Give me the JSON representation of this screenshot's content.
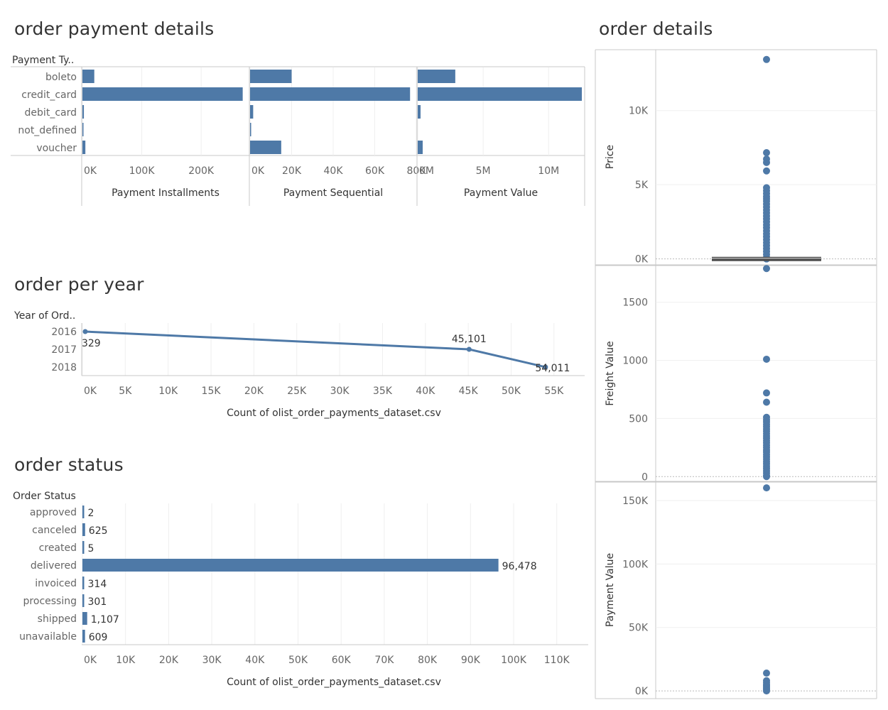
{
  "titles": {
    "payment": "order payment details",
    "year": "order per year",
    "status": "order status",
    "details": "order details"
  },
  "chart_data": [
    {
      "id": "payment",
      "type": "bar",
      "orientation": "horizontal",
      "row_header": "Payment Ty..",
      "categories": [
        "boleto",
        "credit_card",
        "debit_card",
        "not_defined",
        "voucher"
      ],
      "panels": [
        {
          "name": "Payment Installments",
          "values": [
            20000,
            270000,
            2500,
            3,
            5000
          ],
          "xlim": [
            0,
            280000
          ],
          "ticks": [
            0,
            100000,
            200000
          ],
          "tick_labels": [
            "0K",
            "100K",
            "200K"
          ]
        },
        {
          "name": "Payment Sequential",
          "values": [
            20000,
            77000,
            1500,
            3,
            15000
          ],
          "xlim": [
            0,
            80000
          ],
          "ticks": [
            0,
            20000,
            40000,
            60000,
            80000
          ],
          "tick_labels": [
            "0K",
            "20K",
            "40K",
            "60K",
            "80K"
          ]
        },
        {
          "name": "Payment Value",
          "values": [
            2870000,
            12540000,
            217000,
            0,
            380000
          ],
          "xlim": [
            0,
            12700000
          ],
          "ticks": [
            0,
            5000000,
            10000000
          ],
          "tick_labels": [
            "0M",
            "5M",
            "10M"
          ]
        }
      ],
      "color": "#4e79a7"
    },
    {
      "id": "year",
      "type": "line",
      "row_header": "Year of Ord..",
      "categories": [
        "2016",
        "2017",
        "2018"
      ],
      "values": [
        329,
        45101,
        54011
      ],
      "data_labels": [
        "329",
        "45,101",
        "54,011"
      ],
      "xlabel": "Count of olist_order_payments_dataset.csv",
      "xlim": [
        0,
        57500
      ],
      "ticks": [
        0,
        5000,
        10000,
        15000,
        20000,
        25000,
        30000,
        35000,
        40000,
        45000,
        50000,
        55000
      ],
      "tick_labels": [
        "0K",
        "5K",
        "10K",
        "15K",
        "20K",
        "25K",
        "30K",
        "35K",
        "40K",
        "45K",
        "50K",
        "55K"
      ],
      "color": "#4e79a7"
    },
    {
      "id": "status",
      "type": "bar",
      "orientation": "horizontal",
      "row_header": "Order Status",
      "categories": [
        "approved",
        "canceled",
        "created",
        "delivered",
        "invoiced",
        "processing",
        "shipped",
        "unavailable"
      ],
      "values": [
        2,
        625,
        5,
        96478,
        314,
        301,
        1107,
        609
      ],
      "data_labels": [
        "2",
        "625",
        "5",
        "96,478",
        "314",
        "301",
        "1,107",
        "609"
      ],
      "xlabel": "Count of olist_order_payments_dataset.csv",
      "xlim": [
        0,
        114000
      ],
      "ticks": [
        0,
        10000,
        20000,
        30000,
        40000,
        50000,
        60000,
        70000,
        80000,
        90000,
        100000,
        110000
      ],
      "tick_labels": [
        "0K",
        "10K",
        "20K",
        "30K",
        "40K",
        "50K",
        "60K",
        "70K",
        "80K",
        "90K",
        "100K",
        "110K"
      ],
      "color": "#4e79a7"
    },
    {
      "id": "details",
      "type": "scatter",
      "subtype": "box-plot",
      "panels": [
        {
          "name": "Price",
          "ylim": [
            -350,
            14100
          ],
          "ticks": [
            0,
            5000,
            10000
          ],
          "tick_labels": [
            "0K",
            "5K",
            "10K"
          ],
          "points": [
            13440,
            7160,
            6730,
            6500,
            5930,
            4800,
            4600,
            4400,
            4200,
            4050,
            3900,
            3700,
            3500,
            3300,
            3100,
            2900,
            2700,
            2500,
            2300,
            2100,
            1900,
            1700,
            1500,
            1300,
            1100,
            900,
            700,
            500,
            300,
            100,
            0
          ],
          "box": [
            40,
            140
          ]
        },
        {
          "name": "Freight Value",
          "ylim": [
            -35,
            1810
          ],
          "ticks": [
            0,
            500,
            1000,
            1500
          ],
          "tick_labels": [
            "0",
            "500",
            "1000",
            "1500"
          ],
          "points": [
            1790,
            1010,
            720,
            640,
            510,
            490,
            470,
            450,
            430,
            410,
            390,
            370,
            350,
            330,
            310,
            290,
            270,
            250,
            230,
            210,
            190,
            170,
            150,
            130,
            110,
            90,
            70,
            50,
            30,
            10,
            0
          ]
        },
        {
          "name": "Payment Value",
          "ylim": [
            -5000,
            164000
          ],
          "ticks": [
            0,
            50000,
            100000,
            150000
          ],
          "tick_labels": [
            "0K",
            "50K",
            "100K",
            "150K"
          ],
          "points": [
            160000,
            14000,
            8000,
            6500,
            5000,
            4000,
            3000,
            2000,
            1000,
            0
          ]
        }
      ],
      "color": "#4e79a7"
    }
  ]
}
